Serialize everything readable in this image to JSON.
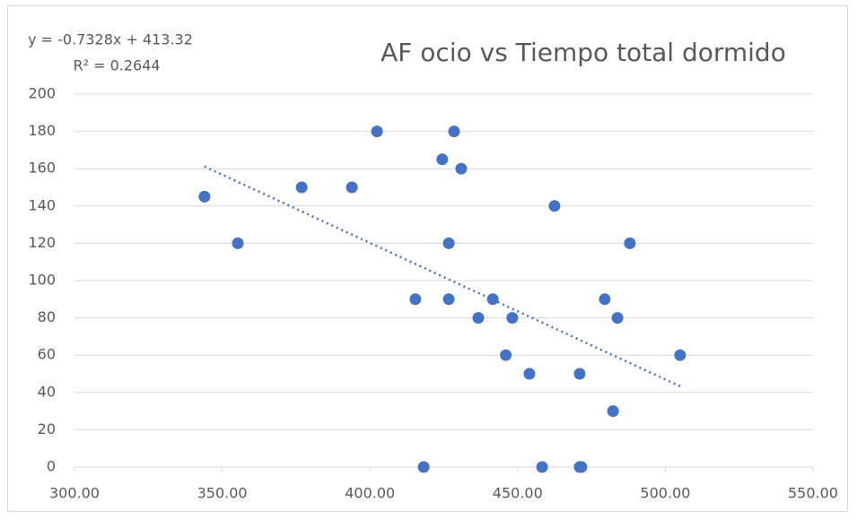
{
  "chart_data": {
    "type": "scatter",
    "title": "AF ocio vs Tiempo total dormido",
    "annotations": [
      "y = -0.7328x + 413.32",
      "R² = 0.2644"
    ],
    "color": "#4472c4",
    "grid": true,
    "x": [
      344.0,
      355.3,
      376.9,
      393.9,
      402.4,
      428.5,
      424.5,
      430.9,
      462.5,
      488.0,
      426.7,
      415.4,
      426.7,
      441.6,
      479.5,
      436.7,
      448.2,
      483.8,
      446.0,
      505.0,
      454.0,
      471.0,
      482.3,
      418.2,
      458.3,
      471.0,
      471.6
    ],
    "values": [
      145,
      120,
      150,
      150,
      180,
      180,
      165,
      160,
      140,
      120,
      120,
      90,
      90,
      90,
      90,
      80,
      80,
      80,
      60,
      60,
      50,
      50,
      30,
      0,
      0,
      0,
      0
    ],
    "trendline": {
      "x": [
        344.0,
        505.0
      ],
      "values": [
        161.2,
        43.3
      ],
      "color": "#4472c4"
    },
    "xlim": [
      300,
      550
    ],
    "xticks": [
      {
        "value": 300,
        "label": "300.00"
      },
      {
        "value": 350,
        "label": "350.00"
      },
      {
        "value": 400,
        "label": "400.00"
      },
      {
        "value": 450,
        "label": "450.00"
      },
      {
        "value": 500,
        "label": "500.00"
      },
      {
        "value": 550,
        "label": "550.00"
      }
    ],
    "ylim": [
      0,
      200
    ],
    "yticks": [
      0,
      20,
      40,
      60,
      80,
      100,
      120,
      140,
      160,
      180,
      200
    ]
  }
}
